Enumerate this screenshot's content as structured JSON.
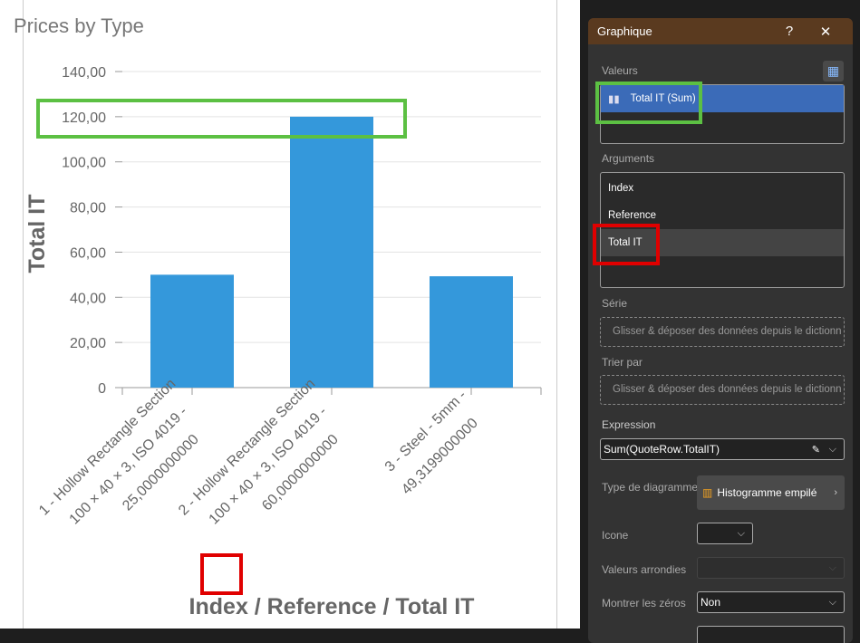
{
  "chart_data": {
    "type": "bar",
    "title": "Prices by Type",
    "xlabel": "Index / Reference / Total IT",
    "ylabel": "Total IT",
    "ylim": [
      0,
      140
    ],
    "yticks": [
      "0",
      "20,00",
      "40,00",
      "60,00",
      "80,00",
      "100,00",
      "120,00",
      "140,00"
    ],
    "grid": true,
    "categories": [
      [
        "1 - Hollow Rectangle Section",
        "100 × 40 × 3, ISO 4019 -",
        "25,0000000000"
      ],
      [
        "2 - Hollow Rectangle Section",
        "100 × 40 × 3, ISO 4019 -",
        "60,0000000000"
      ],
      [
        "3 - Steel - 5mm -",
        "49,3199000000"
      ]
    ],
    "values": [
      50,
      120,
      49.32
    ],
    "color": "#3498db"
  },
  "panel": {
    "title": "Graphique",
    "help": "?",
    "close": "✕",
    "values_label": "Valeurs",
    "values_items": [
      "Total IT (Sum)"
    ],
    "arguments_label": "Arguments",
    "arguments_items": [
      "Index",
      "Reference",
      "Total IT"
    ],
    "serie_label": "Série",
    "serie_placeholder": "Glisser & déposer des données depuis le dictionn",
    "sort_label": "Trier par",
    "sort_placeholder": "Glisser & déposer des données depuis le dictionn",
    "expression_label": "Expression",
    "expression_value": "Sum(QuoteRow.TotalIT)",
    "type_label": "Type de diagramme",
    "type_value": "Histogramme empilé",
    "icon_label": "Icone",
    "icon_value": "",
    "rounded_label": "Valeurs arrondies",
    "rounded_value": "",
    "zeros_label": "Montrer les zéros",
    "zeros_value": "Non"
  },
  "colors": {
    "header": "#5a3a1f",
    "selected": "#3b6bb8",
    "highlight_green": "#5cc043",
    "highlight_red": "#e00000"
  }
}
